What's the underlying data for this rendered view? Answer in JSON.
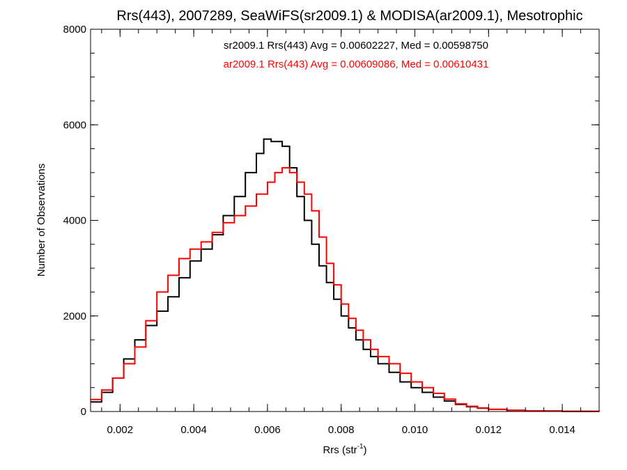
{
  "chart_data": {
    "type": "line",
    "title": "Rrs(443), 2007289, SeaWiFS(sr2009.1) & MODISA(ar2009.1), Mesotrophic",
    "xlabel": "Rrs (str",
    "xlabel_superscript": "-1",
    "xlabel_suffix": ")",
    "ylabel": "Number of Observations",
    "xlim": [
      0.0012,
      0.015
    ],
    "ylim": [
      0,
      8000
    ],
    "x_ticks": [
      {
        "value": 0.002,
        "label": "0.002"
      },
      {
        "value": 0.004,
        "label": "0.004"
      },
      {
        "value": 0.006,
        "label": "0.006"
      },
      {
        "value": 0.008,
        "label": "0.008"
      },
      {
        "value": 0.01,
        "label": "0.010"
      },
      {
        "value": 0.012,
        "label": "0.012"
      },
      {
        "value": 0.014,
        "label": "0.014"
      }
    ],
    "y_ticks": [
      {
        "value": 0,
        "label": "0"
      },
      {
        "value": 2000,
        "label": "2000"
      },
      {
        "value": 4000,
        "label": "4000"
      },
      {
        "value": 6000,
        "label": "6000"
      },
      {
        "value": 8000,
        "label": "8000"
      }
    ],
    "x_minor_step": 0.0005,
    "y_minor_step": 500,
    "grid": false,
    "legend_position": "top-center",
    "annotations": [
      {
        "text": "sr2009.1 Rrs(443) Avg = 0.00602227, Med = 0.00598750",
        "color": "#000000"
      },
      {
        "text": "ar2009.1 Rrs(443) Avg = 0.00609086, Med = 0.00610431",
        "color": "#ff0000"
      }
    ],
    "series": [
      {
        "name": "sr2009.1",
        "color": "#000000",
        "step": true,
        "x": [
          0.0012,
          0.0015,
          0.0018,
          0.0021,
          0.0024,
          0.0027,
          0.003,
          0.0033,
          0.0036,
          0.0039,
          0.0042,
          0.0045,
          0.0048,
          0.0051,
          0.0054,
          0.0057,
          0.0059,
          0.0061,
          0.0064,
          0.0066,
          0.0068,
          0.007,
          0.0072,
          0.0074,
          0.0076,
          0.0078,
          0.008,
          0.0082,
          0.0084,
          0.0086,
          0.0088,
          0.009,
          0.0093,
          0.0096,
          0.0099,
          0.0102,
          0.0105,
          0.0108,
          0.0111,
          0.0114,
          0.0117,
          0.012,
          0.0125,
          0.013,
          0.0135,
          0.014,
          0.0145,
          0.015
        ],
        "y": [
          200,
          400,
          700,
          1100,
          1500,
          1800,
          2100,
          2400,
          2800,
          3150,
          3400,
          3700,
          4100,
          4500,
          5000,
          5400,
          5700,
          5650,
          5550,
          5100,
          4500,
          4000,
          3500,
          3050,
          2700,
          2350,
          2000,
          1750,
          1500,
          1300,
          1150,
          1000,
          820,
          620,
          500,
          400,
          300,
          220,
          150,
          100,
          70,
          45,
          25,
          15,
          10,
          5,
          3,
          0
        ]
      },
      {
        "name": "ar2009.1",
        "color": "#ff0000",
        "step": true,
        "x": [
          0.0012,
          0.0015,
          0.0018,
          0.0021,
          0.0024,
          0.0027,
          0.003,
          0.0033,
          0.0036,
          0.0039,
          0.0042,
          0.0045,
          0.0048,
          0.0051,
          0.0054,
          0.0057,
          0.006,
          0.0062,
          0.0064,
          0.0066,
          0.0068,
          0.007,
          0.0072,
          0.0074,
          0.0076,
          0.0078,
          0.008,
          0.0082,
          0.0084,
          0.0086,
          0.0088,
          0.009,
          0.0093,
          0.0096,
          0.0099,
          0.0102,
          0.0105,
          0.0108,
          0.0111,
          0.0114,
          0.0117,
          0.012,
          0.0125,
          0.013,
          0.0135,
          0.014,
          0.0145,
          0.015
        ],
        "y": [
          250,
          450,
          700,
          1000,
          1350,
          1900,
          2500,
          2850,
          3200,
          3400,
          3550,
          3750,
          3950,
          4100,
          4300,
          4550,
          4800,
          5000,
          5100,
          5000,
          4800,
          4550,
          4200,
          3650,
          3100,
          2650,
          2250,
          1950,
          1700,
          1500,
          1300,
          1150,
          1000,
          800,
          620,
          500,
          380,
          260,
          160,
          110,
          75,
          45,
          25,
          15,
          10,
          5,
          3,
          0
        ]
      }
    ]
  }
}
